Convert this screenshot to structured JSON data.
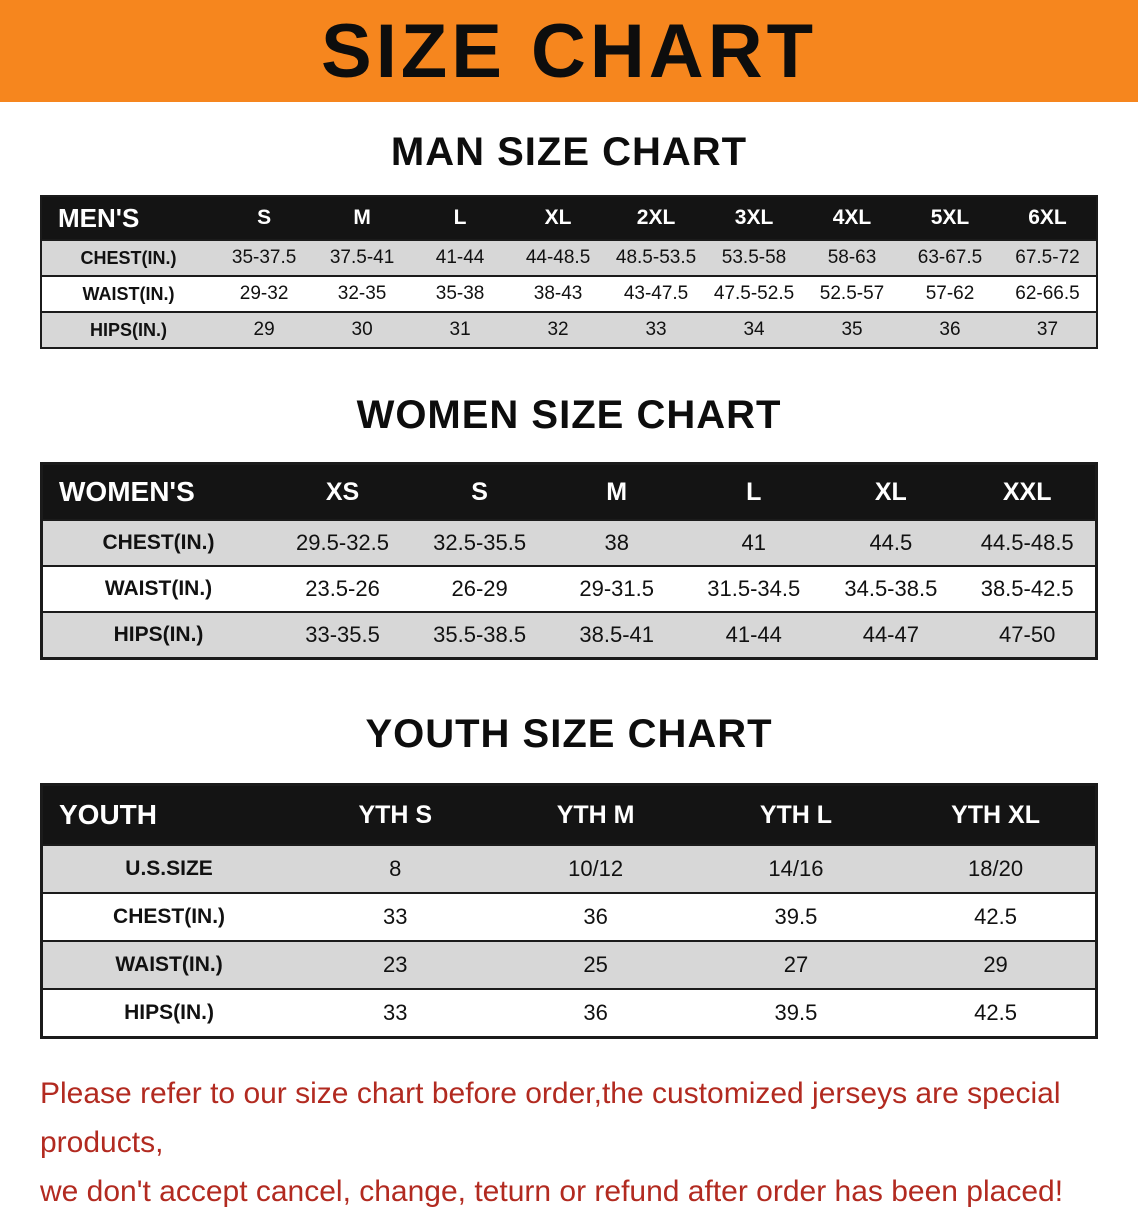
{
  "banner": {
    "title": "SIZE CHART"
  },
  "men": {
    "heading": "MAN SIZE CHART",
    "table": {
      "header": [
        "MEN'S",
        "S",
        "M",
        "L",
        "XL",
        "2XL",
        "3XL",
        "4XL",
        "5XL",
        "6XL"
      ],
      "rows": [
        [
          "CHEST(IN.)",
          "35-37.5",
          "37.5-41",
          "41-44",
          "44-48.5",
          "48.5-53.5",
          "53.5-58",
          "58-63",
          "63-67.5",
          "67.5-72"
        ],
        [
          "WAIST(IN.)",
          "29-32",
          "32-35",
          "35-38",
          "38-43",
          "43-47.5",
          "47.5-52.5",
          "52.5-57",
          "57-62",
          "62-66.5"
        ],
        [
          "HIPS(IN.)",
          "29",
          "30",
          "31",
          "32",
          "33",
          "34",
          "35",
          "36",
          "37"
        ]
      ]
    }
  },
  "women": {
    "heading": "WOMEN SIZE CHART",
    "table": {
      "header": [
        "WOMEN'S",
        "XS",
        "S",
        "M",
        "L",
        "XL",
        "XXL"
      ],
      "rows": [
        [
          "CHEST(IN.)",
          "29.5-32.5",
          "32.5-35.5",
          "38",
          "41",
          "44.5",
          "44.5-48.5"
        ],
        [
          "WAIST(IN.)",
          "23.5-26",
          "26-29",
          "29-31.5",
          "31.5-34.5",
          "34.5-38.5",
          "38.5-42.5"
        ],
        [
          "HIPS(IN.)",
          "33-35.5",
          "35.5-38.5",
          "38.5-41",
          "41-44",
          "44-47",
          "47-50"
        ]
      ]
    }
  },
  "youth": {
    "heading": "YOUTH SIZE CHART",
    "table": {
      "header": [
        "YOUTH",
        "YTH S",
        "YTH M",
        "YTH L",
        "YTH XL"
      ],
      "rows": [
        [
          "U.S.SIZE",
          "8",
          "10/12",
          "14/16",
          "18/20"
        ],
        [
          "CHEST(IN.)",
          "33",
          "36",
          "39.5",
          "42.5"
        ],
        [
          "WAIST(IN.)",
          "23",
          "25",
          "27",
          "29"
        ],
        [
          "HIPS(IN.)",
          "33",
          "36",
          "39.5",
          "42.5"
        ]
      ]
    }
  },
  "disclaimer": {
    "line1": "Please refer to our size chart before order,the customized jerseys are special products,",
    "line2": "we don't accept cancel, change, teturn or refund after order has been placed!"
  },
  "colors": {
    "banner_bg": "#f6861e",
    "table_header_bg": "#141414",
    "row_alt_bg": "#d7d7d7",
    "disclaimer_text": "#b22a20"
  }
}
